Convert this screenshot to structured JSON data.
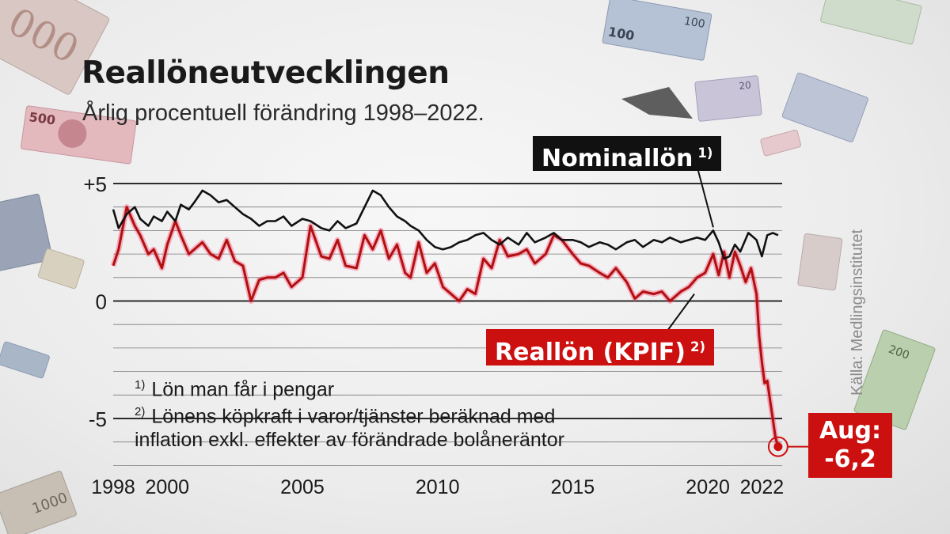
{
  "title": "Reallöneutvecklingen",
  "subtitle": "Årlig procentuell förändring 1998–2022.",
  "source": "Källa: Medlingsinstitutet",
  "labels": {
    "nominal": "Nominallön",
    "nominal_mark": "1)",
    "real": "Reallön (KPIF)",
    "real_mark": "2)",
    "aug_line1": "Aug:",
    "aug_line2": "-6,2"
  },
  "notes": {
    "n1_mark": "1)",
    "n1_text": "Lön man får i pengar",
    "n2_mark": "2)",
    "n2_line1": "Lönens köpkraft i varor/tjänster beräknad med",
    "n2_line2": "inflation exkl. effekter av förändrade bolåneräntor"
  },
  "colors": {
    "nominal": "#111111",
    "real": "#b01010",
    "real_glow": "#ff3060",
    "label_red": "#cc0f0f",
    "grid": "#111111",
    "text": "#1a1a1a"
  },
  "chart_data": {
    "type": "line",
    "title": "Reallöneutvecklingen",
    "subtitle": "Årlig procentuell förändring 1998–2022.",
    "xlim": [
      1998,
      2022.75
    ],
    "ylim": [
      -7,
      5
    ],
    "grid": true,
    "y_ticks": [
      {
        "value": 5,
        "label": "+5"
      },
      {
        "value": 0,
        "label": "0"
      },
      {
        "value": -5,
        "label": "-5"
      }
    ],
    "x_ticks": [
      {
        "value": 1998,
        "label": "1998"
      },
      {
        "value": 2000,
        "label": "2000"
      },
      {
        "value": 2005,
        "label": "2005"
      },
      {
        "value": 2010,
        "label": "2010"
      },
      {
        "value": 2015,
        "label": "2015"
      },
      {
        "value": 2020,
        "label": "2020"
      },
      {
        "value": 2022,
        "label": "2022"
      }
    ],
    "series": [
      {
        "name": "Nominallön",
        "x": [
          1998.0,
          1998.2,
          1998.5,
          1998.8,
          1999.0,
          1999.3,
          1999.5,
          1999.8,
          2000.0,
          2000.3,
          2000.5,
          2000.8,
          2001.0,
          2001.3,
          2001.6,
          2001.9,
          2002.2,
          2002.5,
          2002.8,
          2003.1,
          2003.4,
          2003.7,
          2004.0,
          2004.3,
          2004.6,
          2005.0,
          2005.3,
          2005.7,
          2006.0,
          2006.3,
          2006.6,
          2007.0,
          2007.3,
          2007.6,
          2007.9,
          2008.2,
          2008.5,
          2008.8,
          2009.0,
          2009.3,
          2009.6,
          2009.9,
          2010.2,
          2010.5,
          2010.8,
          2011.1,
          2011.4,
          2011.7,
          2012.0,
          2012.3,
          2012.6,
          2013.0,
          2013.3,
          2013.6,
          2014.0,
          2014.3,
          2014.6,
          2015.0,
          2015.3,
          2015.6,
          2016.0,
          2016.3,
          2016.6,
          2017.0,
          2017.3,
          2017.6,
          2018.0,
          2018.3,
          2018.6,
          2019.0,
          2019.3,
          2019.6,
          2019.9,
          2020.2,
          2020.4,
          2020.6,
          2020.8,
          2021.0,
          2021.2,
          2021.5,
          2021.8,
          2022.0,
          2022.2,
          2022.4,
          2022.6
        ],
        "y": [
          3.9,
          3.1,
          3.7,
          4.0,
          3.5,
          3.2,
          3.6,
          3.4,
          3.8,
          3.4,
          4.1,
          3.9,
          4.2,
          4.7,
          4.5,
          4.2,
          4.3,
          4.0,
          3.7,
          3.5,
          3.2,
          3.4,
          3.4,
          3.6,
          3.2,
          3.5,
          3.4,
          3.1,
          3.0,
          3.4,
          3.1,
          3.3,
          4.0,
          4.7,
          4.5,
          4.0,
          3.6,
          3.4,
          3.2,
          3.0,
          2.6,
          2.3,
          2.2,
          2.3,
          2.5,
          2.6,
          2.8,
          2.9,
          2.6,
          2.4,
          2.7,
          2.4,
          2.9,
          2.5,
          2.7,
          2.9,
          2.6,
          2.6,
          2.5,
          2.3,
          2.5,
          2.4,
          2.2,
          2.5,
          2.6,
          2.3,
          2.6,
          2.5,
          2.7,
          2.5,
          2.6,
          2.7,
          2.6,
          3.0,
          2.5,
          1.8,
          1.9,
          2.4,
          2.1,
          2.9,
          2.6,
          1.9,
          2.8,
          2.9,
          2.8
        ]
      },
      {
        "name": "Reallön (KPIF)",
        "x": [
          1998.0,
          1998.2,
          1998.5,
          1998.8,
          1999.0,
          1999.3,
          1999.5,
          1999.8,
          2000.0,
          2000.3,
          2000.5,
          2000.8,
          2001.0,
          2001.3,
          2001.6,
          2001.9,
          2002.2,
          2002.5,
          2002.8,
          2003.1,
          2003.4,
          2003.7,
          2004.0,
          2004.3,
          2004.6,
          2005.0,
          2005.3,
          2005.7,
          2006.0,
          2006.3,
          2006.6,
          2007.0,
          2007.3,
          2007.6,
          2007.9,
          2008.2,
          2008.5,
          2008.8,
          2009.0,
          2009.3,
          2009.6,
          2009.9,
          2010.2,
          2010.5,
          2010.8,
          2011.1,
          2011.4,
          2011.7,
          2012.0,
          2012.3,
          2012.6,
          2013.0,
          2013.3,
          2013.6,
          2014.0,
          2014.3,
          2014.6,
          2015.0,
          2015.3,
          2015.6,
          2016.0,
          2016.3,
          2016.6,
          2017.0,
          2017.3,
          2017.6,
          2018.0,
          2018.3,
          2018.6,
          2019.0,
          2019.3,
          2019.6,
          2019.9,
          2020.2,
          2020.4,
          2020.6,
          2020.8,
          2021.0,
          2021.2,
          2021.4,
          2021.6,
          2021.8,
          2021.9,
          2022.0,
          2022.1,
          2022.2,
          2022.3,
          2022.4,
          2022.5,
          2022.6
        ],
        "y": [
          1.5,
          2.2,
          4.0,
          3.2,
          2.8,
          2.0,
          2.2,
          1.4,
          2.4,
          3.4,
          2.8,
          2.0,
          2.2,
          2.5,
          2.0,
          1.8,
          2.6,
          1.7,
          1.5,
          0.0,
          0.9,
          1.0,
          1.0,
          1.2,
          0.6,
          1.0,
          3.2,
          1.9,
          1.8,
          2.6,
          1.5,
          1.4,
          2.8,
          2.2,
          3.0,
          1.8,
          2.4,
          1.2,
          1.0,
          2.5,
          1.2,
          1.6,
          0.6,
          0.3,
          0.0,
          0.5,
          0.3,
          1.8,
          1.4,
          2.6,
          1.9,
          2.0,
          2.2,
          1.6,
          2.0,
          2.8,
          2.6,
          2.0,
          1.6,
          1.5,
          1.2,
          1.0,
          1.4,
          0.8,
          0.1,
          0.4,
          0.3,
          0.4,
          0.0,
          0.4,
          0.6,
          1.0,
          1.2,
          2.0,
          1.1,
          2.1,
          1.0,
          2.1,
          1.5,
          0.8,
          1.4,
          0.3,
          -1.5,
          -2.6,
          -3.5,
          -3.4,
          -4.2,
          -5.0,
          -5.8,
          -6.2
        ]
      }
    ]
  }
}
